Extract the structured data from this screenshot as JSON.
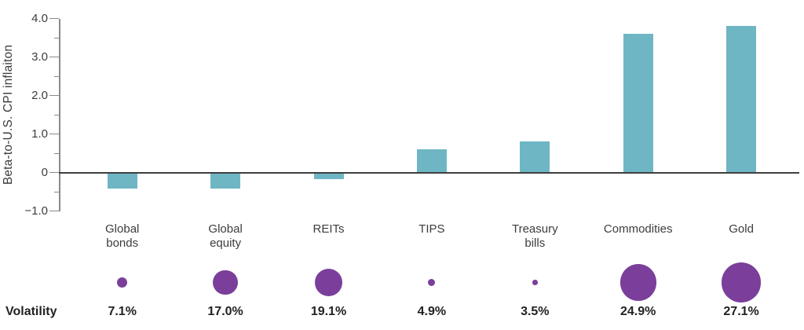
{
  "chart_data": {
    "type": "bar",
    "title": "",
    "xlabel": "",
    "ylabel": "Beta-to-U.S. CPI inflaiton",
    "ylim": [
      -1.0,
      4.0
    ],
    "grid": false,
    "legend_position": "none",
    "categories": [
      "Global bonds",
      "Global equity",
      "REITs",
      "TIPS",
      "Treasury bills",
      "Commodities",
      "Gold"
    ],
    "values": [
      -0.4,
      -0.4,
      -0.15,
      0.6,
      0.8,
      3.6,
      3.8
    ],
    "yticks": [
      {
        "value": 4.0,
        "label": "4.0"
      },
      {
        "value": 3.0,
        "label": "3.0"
      },
      {
        "value": 2.0,
        "label": "2.0"
      },
      {
        "value": 1.0,
        "label": "1.0"
      },
      {
        "value": 0,
        "label": "0"
      },
      {
        "value": -1.0,
        "label": "−1.0"
      }
    ],
    "yticks_minor": [
      3.5,
      2.5,
      1.5,
      0.5,
      -0.5
    ],
    "volatility_row": {
      "label": "Volatility",
      "values_pct": [
        7.1,
        17.0,
        19.1,
        4.9,
        3.5,
        24.9,
        27.1
      ],
      "labels": [
        "7.1%",
        "17.0%",
        "19.1%",
        "4.9%",
        "3.5%",
        "24.9%",
        "27.1%"
      ]
    },
    "colors": {
      "bar": "#6FB6C5",
      "bubble": "#7B3F9B"
    }
  }
}
